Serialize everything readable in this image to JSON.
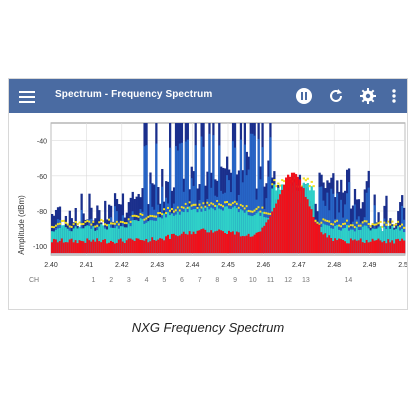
{
  "app": {
    "title": "Spectrum - Frequency Spectrum",
    "icons": [
      "menu-icon",
      "pause-icon",
      "refresh-icon",
      "settings-icon",
      "more-vert-icon"
    ]
  },
  "caption": "NXG Frequency Spectrum",
  "chart_data": {
    "type": "heatmap",
    "title": "",
    "xlabel": "",
    "ylabel": "Amplitude (dBm)",
    "xlim": [
      2.4,
      2.5
    ],
    "ylim": [
      -105,
      -30
    ],
    "x_ticks": [
      "2.40",
      "2.41",
      "2.42",
      "2.43",
      "2.44",
      "2.45",
      "2.46",
      "2.47",
      "2.48",
      "2.49",
      "2.50"
    ],
    "y_ticks": [
      "-40",
      "-60",
      "-80",
      "-100"
    ],
    "channel_row_label": "CH",
    "channels": [
      {
        "label": "1",
        "freq": 2.412
      },
      {
        "label": "2",
        "freq": 2.417
      },
      {
        "label": "3",
        "freq": 2.422
      },
      {
        "label": "4",
        "freq": 2.427
      },
      {
        "label": "5",
        "freq": 2.432
      },
      {
        "label": "6",
        "freq": 2.437
      },
      {
        "label": "7",
        "freq": 2.442
      },
      {
        "label": "8",
        "freq": 2.447
      },
      {
        "label": "9",
        "freq": 2.452
      },
      {
        "label": "10",
        "freq": 2.457
      },
      {
        "label": "11",
        "freq": 2.462
      },
      {
        "label": "12",
        "freq": 2.467
      },
      {
        "label": "13",
        "freq": 2.472
      },
      {
        "label": "14",
        "freq": 2.484
      }
    ],
    "density_colors": [
      "#1a2f8c",
      "#2a6fd0",
      "#2fd0c8",
      "#f5e020",
      "#f0101a"
    ],
    "grid": true
  }
}
